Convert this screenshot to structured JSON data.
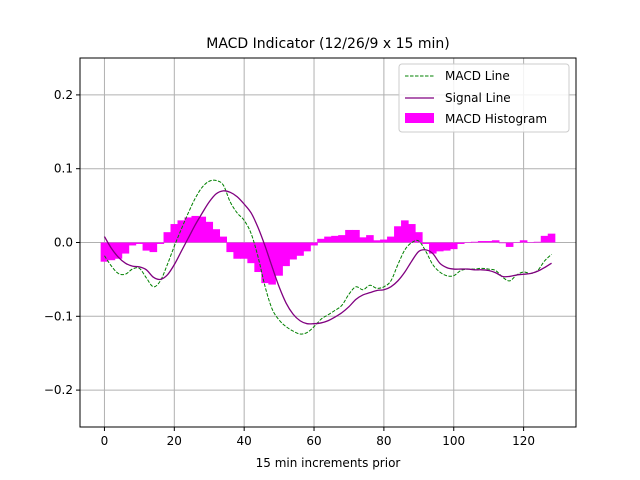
{
  "chart_data": {
    "type": "line",
    "title": "MACD Indicator (12/26/9 x 15 min)",
    "xlabel": "15 min increments prior",
    "ylabel": "",
    "xlim": [
      -7,
      135
    ],
    "ylim": [
      -0.25,
      0.25
    ],
    "xticks": [
      0,
      20,
      40,
      60,
      80,
      100,
      120
    ],
    "yticks": [
      -0.2,
      -0.1,
      0.0,
      0.1,
      0.2
    ],
    "xtick_labels": [
      "0",
      "20",
      "40",
      "60",
      "80",
      "100",
      "120"
    ],
    "ytick_labels": [
      "−0.2",
      "−0.1",
      "0.0",
      "0.1",
      "0.2"
    ],
    "grid": true,
    "legend_position": "top-right",
    "x": [
      0,
      2,
      4,
      6,
      8,
      10,
      12,
      14,
      16,
      18,
      20,
      22,
      24,
      26,
      28,
      30,
      32,
      34,
      36,
      38,
      40,
      42,
      44,
      46,
      48,
      50,
      52,
      54,
      56,
      58,
      60,
      62,
      64,
      66,
      68,
      70,
      72,
      74,
      76,
      78,
      80,
      82,
      84,
      86,
      88,
      90,
      92,
      94,
      96,
      98,
      100,
      102,
      104,
      106,
      108,
      110,
      112,
      114,
      116,
      118,
      120,
      122,
      124,
      126,
      128
    ],
    "series": [
      {
        "name": "MACD Line",
        "style": "dashed",
        "color": "#008000",
        "values": [
          -0.018,
          -0.032,
          -0.042,
          -0.043,
          -0.036,
          -0.035,
          -0.048,
          -0.06,
          -0.052,
          -0.03,
          -0.005,
          0.018,
          0.04,
          0.06,
          0.075,
          0.083,
          0.084,
          0.078,
          0.055,
          0.04,
          0.03,
          0.012,
          -0.02,
          -0.06,
          -0.09,
          -0.105,
          -0.114,
          -0.12,
          -0.124,
          -0.122,
          -0.114,
          -0.104,
          -0.098,
          -0.092,
          -0.085,
          -0.07,
          -0.06,
          -0.064,
          -0.058,
          -0.062,
          -0.06,
          -0.052,
          -0.03,
          -0.01,
          0.0,
          0.002,
          -0.012,
          -0.03,
          -0.04,
          -0.045,
          -0.045,
          -0.038,
          -0.036,
          -0.036,
          -0.035,
          -0.036,
          -0.038,
          -0.047,
          -0.052,
          -0.044,
          -0.04,
          -0.042,
          -0.038,
          -0.025,
          -0.016
        ]
      },
      {
        "name": "Signal Line",
        "style": "solid",
        "color": "#800080",
        "values": [
          0.008,
          -0.008,
          -0.02,
          -0.028,
          -0.032,
          -0.033,
          -0.037,
          -0.047,
          -0.05,
          -0.044,
          -0.03,
          -0.012,
          0.006,
          0.024,
          0.04,
          0.055,
          0.066,
          0.07,
          0.068,
          0.062,
          0.052,
          0.04,
          0.02,
          -0.005,
          -0.033,
          -0.06,
          -0.082,
          -0.097,
          -0.106,
          -0.11,
          -0.11,
          -0.109,
          -0.106,
          -0.101,
          -0.095,
          -0.087,
          -0.077,
          -0.071,
          -0.068,
          -0.065,
          -0.064,
          -0.06,
          -0.052,
          -0.04,
          -0.025,
          -0.012,
          -0.01,
          -0.015,
          -0.028,
          -0.034,
          -0.036,
          -0.036,
          -0.036,
          -0.037,
          -0.037,
          -0.038,
          -0.041,
          -0.046,
          -0.046,
          -0.044,
          -0.043,
          -0.042,
          -0.039,
          -0.034,
          -0.028
        ]
      },
      {
        "name": "MACD Histogram",
        "style": "bar",
        "color": "#ff00ff",
        "values": [
          -0.026,
          -0.024,
          -0.022,
          -0.015,
          -0.004,
          -0.002,
          -0.011,
          -0.013,
          -0.002,
          0.014,
          0.025,
          0.03,
          0.034,
          0.036,
          0.035,
          0.028,
          0.018,
          0.008,
          -0.013,
          -0.022,
          -0.022,
          -0.028,
          -0.04,
          -0.055,
          -0.057,
          -0.045,
          -0.032,
          -0.023,
          -0.018,
          -0.012,
          -0.004,
          0.005,
          0.008,
          0.009,
          0.01,
          0.017,
          0.017,
          0.007,
          0.01,
          0.003,
          0.004,
          0.008,
          0.022,
          0.03,
          0.025,
          0.014,
          -0.002,
          -0.015,
          -0.012,
          -0.011,
          -0.009,
          -0.002,
          0.0,
          0.001,
          0.002,
          0.002,
          0.003,
          -0.001,
          -0.006,
          0.0,
          0.003,
          0.0,
          0.001,
          0.009,
          0.012
        ]
      }
    ]
  }
}
